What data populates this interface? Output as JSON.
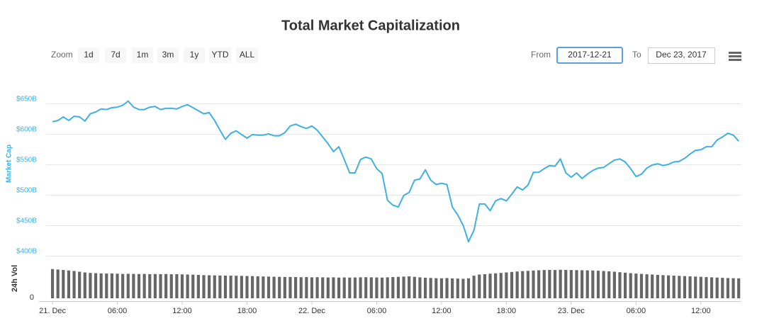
{
  "toolbar": {
    "zoom_label": "Zoom",
    "zoom_buttons": [
      "1d",
      "7d",
      "1m",
      "3m",
      "1y",
      "YTD",
      "ALL"
    ],
    "from_label": "From",
    "from_value": "2017-12-21",
    "to_label": "To",
    "to_value": "Dec 23, 2017"
  },
  "chart_data": {
    "type": "line",
    "title": "Total Market Capitalization",
    "y_label": "Market Cap",
    "y2_label": "24h Vol",
    "x": [
      0,
      0.5,
      1,
      1.5,
      2,
      2.5,
      3,
      3.5,
      4,
      4.5,
      5,
      5.5,
      6,
      6.5,
      7,
      7.5,
      8,
      8.5,
      9,
      9.5,
      10,
      10.5,
      11,
      11.5,
      12,
      12.5,
      13,
      13.5,
      14,
      14.5,
      15,
      15.5,
      16,
      16.5,
      17,
      17.5,
      18,
      18.5,
      19,
      19.5,
      20,
      20.5,
      21,
      21.5,
      22,
      22.5,
      23,
      23.5,
      24,
      24.5,
      25,
      25.5,
      26,
      26.5,
      27,
      27.5,
      28,
      28.5,
      29,
      29.5,
      30,
      30.5,
      31,
      31.5,
      32,
      32.5,
      33,
      33.5,
      34,
      34.5,
      35,
      35.5,
      36,
      36.5,
      37,
      37.5,
      38,
      38.5,
      39,
      39.5,
      40,
      40.5,
      41,
      41.5,
      42,
      42.5,
      43,
      43.5,
      44,
      44.5,
      45,
      45.5,
      46,
      46.5,
      47,
      47.5,
      48,
      48.5,
      49,
      49.5,
      50,
      50.5,
      51,
      51.5,
      52,
      52.5,
      53,
      53.5,
      54,
      54.5,
      55,
      55.5,
      56,
      56.5,
      57,
      57.5,
      58,
      58.5,
      59,
      59.5,
      60,
      60.5,
      61,
      61.5,
      62,
      62.5,
      63,
      63.5
    ],
    "series": [
      {
        "type": "line",
        "color": "#3fb0e0",
        "values": [
          620,
          622,
          628,
          622,
          629,
          628,
          621,
          633,
          636,
          641,
          640,
          643,
          644,
          647,
          654,
          644,
          640,
          640,
          644,
          645,
          640,
          642,
          642,
          641,
          645,
          648,
          643,
          638,
          633,
          635,
          622,
          606,
          591,
          601,
          605,
          599,
          593,
          599,
          598,
          598,
          600,
          597,
          597,
          602,
          613,
          616,
          612,
          609,
          613,
          606,
          595,
          584,
          571,
          579,
          558,
          536,
          536,
          558,
          562,
          559,
          543,
          535,
          491,
          483,
          480,
          499,
          504,
          524,
          526,
          541,
          524,
          517,
          519,
          517,
          480,
          467,
          450,
          423,
          442,
          485,
          485,
          474,
          490,
          494,
          490,
          501,
          513,
          508,
          516,
          537,
          537,
          543,
          548,
          547,
          559,
          536,
          529,
          536,
          527,
          534,
          540,
          544,
          545,
          551,
          557,
          559,
          554,
          543,
          530,
          534,
          544,
          549,
          551,
          548,
          550,
          554,
          555,
          560,
          567,
          573,
          574,
          579,
          579,
          590,
          595,
          601,
          598,
          588
        ]
      },
      {
        "type": "bar",
        "axis": "y2",
        "color": "#666666",
        "values": [
          24.0,
          23.6,
          23.2,
          22.8,
          22.4,
          21.8,
          21.2,
          20.8,
          20.6,
          20.4,
          20.3,
          20.4,
          20.2,
          20.0,
          20.1,
          20.0,
          19.9,
          20.0,
          19.8,
          19.9,
          19.8,
          19.9,
          19.7,
          19.8,
          19.6,
          19.5,
          19.4,
          19.2,
          19.0,
          18.9,
          18.8,
          18.7,
          18.6,
          18.6,
          18.5,
          18.4,
          18.3,
          18.2,
          18.0,
          17.9,
          17.8,
          17.7,
          17.6,
          17.5,
          17.5,
          17.4,
          17.3,
          17.4,
          17.2,
          17.3,
          17.2,
          17.1,
          17.2,
          17.0,
          17.1,
          17.0,
          17.1,
          17.2,
          17.3,
          17.2,
          17.1,
          17.0,
          17.2,
          17.4,
          17.6,
          17.8,
          18.0,
          17.6,
          17.2,
          16.9,
          16.7,
          16.5,
          16.4,
          16.6,
          16.3,
          16.2,
          16.0,
          16.4,
          18.5,
          19.5,
          19.8,
          20.2,
          20.5,
          20.8,
          21.2,
          21.6,
          22.0,
          22.3,
          22.5,
          22.8,
          23.0,
          23.2,
          23.3,
          23.2,
          23.4,
          23.3,
          23.2,
          23.1,
          23.0,
          22.9,
          22.8,
          22.6,
          22.4,
          22.1,
          21.8,
          21.4,
          21.0,
          20.6,
          20.3,
          20.0,
          19.7,
          19.5,
          19.2,
          19.0,
          18.8,
          18.6,
          18.4,
          18.2,
          18.0,
          17.8,
          17.6,
          17.4,
          17.2,
          17.0,
          16.8,
          16.6,
          16.5,
          16.4
        ]
      }
    ],
    "xlim": [
      -1.25,
      63.75
    ],
    "xticks": [
      {
        "value": 0,
        "label": "21. Dec"
      },
      {
        "value": 6,
        "label": "06:00"
      },
      {
        "value": 12,
        "label": "12:00"
      },
      {
        "value": 18,
        "label": "18:00"
      },
      {
        "value": 24,
        "label": "22. Dec"
      },
      {
        "value": 30,
        "label": "06:00"
      },
      {
        "value": 36,
        "label": "12:00"
      },
      {
        "value": 42,
        "label": "18:00"
      },
      {
        "value": 48,
        "label": "23. Dec"
      },
      {
        "value": 54,
        "label": "06:00"
      },
      {
        "value": 60,
        "label": "12:00"
      }
    ],
    "ylim": [
      400,
      660
    ],
    "yticks": [
      {
        "value": 400,
        "label": "$400B"
      },
      {
        "value": 450,
        "label": "$450B"
      },
      {
        "value": 500,
        "label": "$500B"
      },
      {
        "value": 550,
        "label": "$550B"
      },
      {
        "value": 600,
        "label": "$600B"
      },
      {
        "value": 650,
        "label": "$650B"
      }
    ],
    "y2lim": [
      0,
      25
    ],
    "y2ticks": [
      0
    ],
    "grid": true
  }
}
